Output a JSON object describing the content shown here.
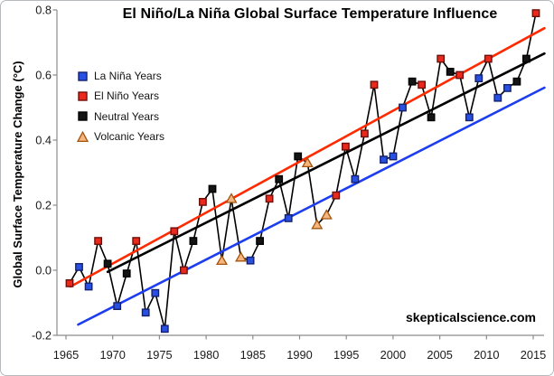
{
  "title": "El Niño/La Niña Global Surface Temperature Influence",
  "watermark": "skepticalscience.com",
  "legend": {
    "items": [
      {
        "label": "La Niña Years",
        "group": "lanina"
      },
      {
        "label": "El Niño Years",
        "group": "elnino"
      },
      {
        "label": "Neutral Years",
        "group": "neutral"
      },
      {
        "label": "Volcanic Years",
        "group": "volcanic"
      }
    ]
  },
  "chart_data": {
    "type": "line",
    "title": "El Niño/La Niña Global Surface Temperature Influence",
    "xlabel": "",
    "ylabel": "Global Surface Temperature Change (°C)",
    "ylim": [
      -0.2,
      0.8
    ],
    "xlim": [
      1964,
      2016.5
    ],
    "grid": false,
    "legend_position": "upper-left-inside",
    "x_ticks": [
      1965,
      1970,
      1975,
      1980,
      1985,
      1990,
      1995,
      2000,
      2005,
      2010,
      2015
    ],
    "y_ticks": [
      "-0.2",
      "0.0",
      "0.2",
      "0.4",
      "0.6",
      "0.8"
    ],
    "axis_color": "#8c8c8c",
    "tick_label_color": "#1a1a1a",
    "connector_color": "#000000",
    "groups": {
      "lanina": {
        "label": "La Niña Years",
        "marker": "square",
        "fill": "#2851e3",
        "stroke": "#14206e"
      },
      "elnino": {
        "label": "El Niño Years",
        "marker": "square",
        "fill": "#e8291c",
        "stroke": "#6e0f0a"
      },
      "neutral": {
        "label": "Neutral Years",
        "marker": "square",
        "fill": "#141414",
        "stroke": "#000000"
      },
      "volcanic": {
        "label": "Volcanic Years",
        "marker": "triangle",
        "fill": "#f4b57e",
        "stroke": "#a3540d"
      }
    },
    "points": [
      {
        "year": 1966,
        "value": -0.04,
        "group": "elnino"
      },
      {
        "year": 1967,
        "value": 0.01,
        "group": "lanina"
      },
      {
        "year": 1968,
        "value": -0.05,
        "group": "lanina"
      },
      {
        "year": 1969,
        "value": 0.09,
        "group": "elnino"
      },
      {
        "year": 1970,
        "value": 0.02,
        "group": "neutral"
      },
      {
        "year": 1971,
        "value": -0.11,
        "group": "lanina"
      },
      {
        "year": 1972,
        "value": -0.01,
        "group": "neutral"
      },
      {
        "year": 1973,
        "value": 0.09,
        "group": "elnino"
      },
      {
        "year": 1974,
        "value": -0.13,
        "group": "lanina"
      },
      {
        "year": 1975,
        "value": -0.07,
        "group": "lanina"
      },
      {
        "year": 1976,
        "value": -0.18,
        "group": "lanina"
      },
      {
        "year": 1977,
        "value": 0.12,
        "group": "elnino"
      },
      {
        "year": 1978,
        "value": 0.0,
        "group": "elnino"
      },
      {
        "year": 1979,
        "value": 0.09,
        "group": "neutral"
      },
      {
        "year": 1980,
        "value": 0.21,
        "group": "elnino"
      },
      {
        "year": 1981,
        "value": 0.25,
        "group": "neutral"
      },
      {
        "year": 1982,
        "value": 0.03,
        "group": "volcanic"
      },
      {
        "year": 1983,
        "value": 0.22,
        "group": "volcanic"
      },
      {
        "year": 1984,
        "value": 0.04,
        "group": "volcanic"
      },
      {
        "year": 1985,
        "value": 0.03,
        "group": "lanina"
      },
      {
        "year": 1986,
        "value": 0.09,
        "group": "neutral"
      },
      {
        "year": 1987,
        "value": 0.22,
        "group": "elnino"
      },
      {
        "year": 1988,
        "value": 0.28,
        "group": "neutral"
      },
      {
        "year": 1989,
        "value": 0.16,
        "group": "lanina"
      },
      {
        "year": 1990,
        "value": 0.35,
        "group": "neutral"
      },
      {
        "year": 1991,
        "value": 0.33,
        "group": "volcanic"
      },
      {
        "year": 1992,
        "value": 0.14,
        "group": "volcanic"
      },
      {
        "year": 1993,
        "value": 0.17,
        "group": "volcanic"
      },
      {
        "year": 1994,
        "value": 0.23,
        "group": "elnino"
      },
      {
        "year": 1995,
        "value": 0.38,
        "group": "elnino"
      },
      {
        "year": 1996,
        "value": 0.28,
        "group": "lanina"
      },
      {
        "year": 1997,
        "value": 0.42,
        "group": "elnino"
      },
      {
        "year": 1998,
        "value": 0.57,
        "group": "elnino"
      },
      {
        "year": 1999,
        "value": 0.34,
        "group": "lanina"
      },
      {
        "year": 2000,
        "value": 0.35,
        "group": "lanina"
      },
      {
        "year": 2001,
        "value": 0.5,
        "group": "lanina"
      },
      {
        "year": 2002,
        "value": 0.58,
        "group": "neutral"
      },
      {
        "year": 2003,
        "value": 0.57,
        "group": "elnino"
      },
      {
        "year": 2004,
        "value": 0.47,
        "group": "neutral"
      },
      {
        "year": 2005,
        "value": 0.65,
        "group": "elnino"
      },
      {
        "year": 2006,
        "value": 0.61,
        "group": "neutral"
      },
      {
        "year": 2007,
        "value": 0.6,
        "group": "elnino"
      },
      {
        "year": 2008,
        "value": 0.47,
        "group": "lanina"
      },
      {
        "year": 2009,
        "value": 0.59,
        "group": "lanina"
      },
      {
        "year": 2010,
        "value": 0.65,
        "group": "elnino"
      },
      {
        "year": 2011,
        "value": 0.53,
        "group": "lanina"
      },
      {
        "year": 2012,
        "value": 0.56,
        "group": "lanina"
      },
      {
        "year": 2013,
        "value": 0.58,
        "group": "neutral"
      },
      {
        "year": 2014,
        "value": 0.65,
        "group": "neutral"
      },
      {
        "year": 2015,
        "value": 0.79,
        "group": "elnino"
      }
    ],
    "trend_lines": [
      {
        "group": "elnino",
        "color": "#ff2a00",
        "x": [
          1966.1,
          2015.9
        ],
        "y": [
          -0.05,
          0.744
        ]
      },
      {
        "group": "neutral",
        "color": "#000000",
        "x": [
          1970.0,
          2015.9
        ],
        "y": [
          -0.005,
          0.666
        ]
      },
      {
        "group": "lanina",
        "color": "#1d3ef0",
        "x": [
          1966.9,
          2015.9
        ],
        "y": [
          -0.167,
          0.561
        ]
      }
    ]
  }
}
